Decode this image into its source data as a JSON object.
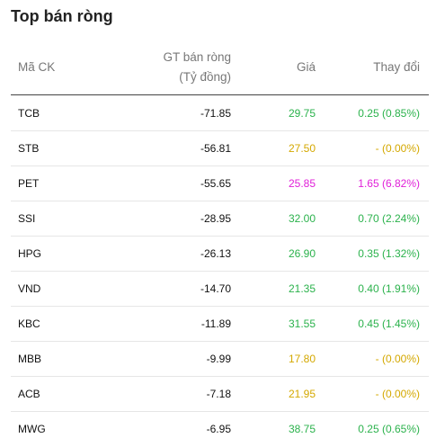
{
  "title": "Top bán ròng",
  "headers": {
    "symbol": "Mã CK",
    "net_value_line1": "GT bán ròng",
    "net_value_line2": "(Tỷ đồng)",
    "price": "Giá",
    "change": "Thay đổi"
  },
  "colors": {
    "up": "#2bb24c",
    "reference": "#d4a800",
    "ceiling": "#e020d8"
  },
  "rows": [
    {
      "symbol": "TCB",
      "net_value": "-71.85",
      "price": "29.75",
      "change": "0.25 (0.85%)",
      "status": "up"
    },
    {
      "symbol": "STB",
      "net_value": "-56.81",
      "price": "27.50",
      "change": "- (0.00%)",
      "status": "ref"
    },
    {
      "symbol": "PET",
      "net_value": "-55.65",
      "price": "25.85",
      "change": "1.65 (6.82%)",
      "status": "ceil"
    },
    {
      "symbol": "SSI",
      "net_value": "-28.95",
      "price": "32.00",
      "change": "0.70 (2.24%)",
      "status": "up"
    },
    {
      "symbol": "HPG",
      "net_value": "-26.13",
      "price": "26.90",
      "change": "0.35 (1.32%)",
      "status": "up"
    },
    {
      "symbol": "VND",
      "net_value": "-14.70",
      "price": "21.35",
      "change": "0.40 (1.91%)",
      "status": "up"
    },
    {
      "symbol": "KBC",
      "net_value": "-11.89",
      "price": "31.55",
      "change": "0.45 (1.45%)",
      "status": "up"
    },
    {
      "symbol": "MBB",
      "net_value": "-9.99",
      "price": "17.80",
      "change": "- (0.00%)",
      "status": "ref"
    },
    {
      "symbol": "ACB",
      "net_value": "-7.18",
      "price": "21.95",
      "change": "- (0.00%)",
      "status": "ref"
    },
    {
      "symbol": "MWG",
      "net_value": "-6.95",
      "price": "38.75",
      "change": "0.25 (0.65%)",
      "status": "up"
    }
  ]
}
